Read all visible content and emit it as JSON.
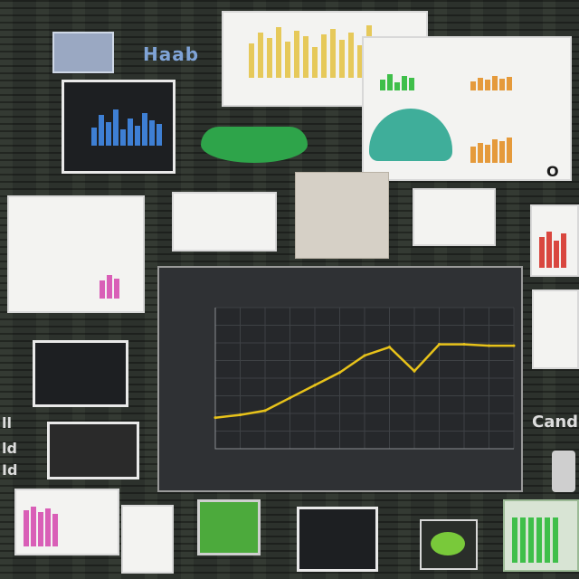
{
  "header": {
    "logo_text": "Haab"
  },
  "side_labels": {
    "right": "Cand",
    "left_top": "ll",
    "left_mid": "ld",
    "left_bot": "Id"
  },
  "corner_mark": "O",
  "chart_data": {
    "type": "line",
    "title": "",
    "xlabel": "",
    "ylabel": "",
    "x": [
      0,
      1,
      2,
      3,
      4,
      5,
      6,
      7,
      8,
      9,
      10,
      11,
      12
    ],
    "series": [
      {
        "values": [
          22,
          24,
          27,
          36,
          45,
          54,
          66,
          72,
          55,
          74,
          74,
          73,
          73
        ]
      }
    ],
    "ylim": [
      0,
      100
    ],
    "grid": true,
    "line_color": "#e7c21a"
  },
  "thumbnail_colors": {
    "yellow": "#e6c95a",
    "green": "#3fbf4a",
    "blue": "#3e7fd4",
    "pink": "#d95fb7",
    "red": "#d9473f",
    "orange": "#e59a3b",
    "teal": "#3fae9a"
  }
}
